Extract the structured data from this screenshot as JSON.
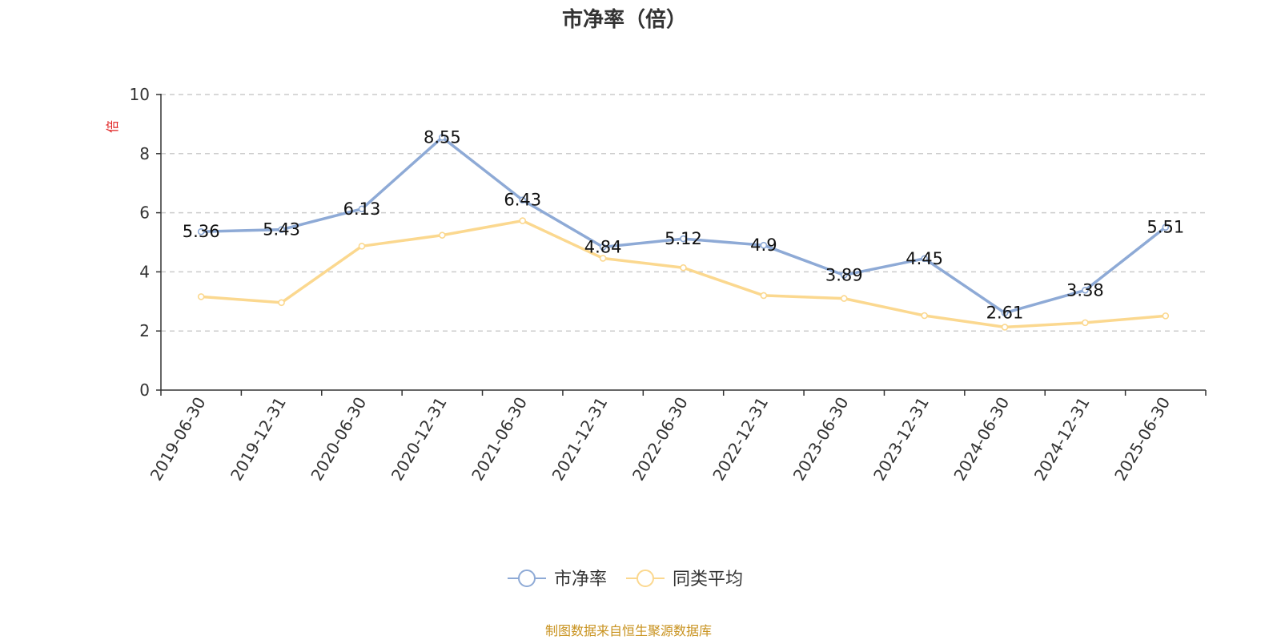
{
  "chart_data": {
    "type": "line",
    "title": "市净率（倍）",
    "ylabel": "倍",
    "xlabel": "",
    "ylim": [
      0,
      10
    ],
    "yticks": [
      0,
      2,
      4,
      6,
      8,
      10
    ],
    "grid": true,
    "legend_position": "bottom-center",
    "categories": [
      "2019-06-30",
      "2019-12-31",
      "2020-06-30",
      "2020-12-31",
      "2021-06-30",
      "2021-12-31",
      "2022-06-30",
      "2022-12-31",
      "2023-06-30",
      "2023-12-31",
      "2024-06-30",
      "2024-12-31",
      "2025-06-30"
    ],
    "series": [
      {
        "name": "市净率",
        "color": "#8eaad6",
        "show_labels": true,
        "values": [
          5.36,
          5.43,
          6.13,
          8.55,
          6.43,
          4.84,
          5.12,
          4.9,
          3.89,
          4.45,
          2.61,
          3.38,
          5.51
        ]
      },
      {
        "name": "同类平均",
        "color": "#fbd88f",
        "show_labels": false,
        "values": [
          3.16,
          2.96,
          4.87,
          5.24,
          5.73,
          4.46,
          4.14,
          3.2,
          3.1,
          2.52,
          2.13,
          2.28,
          2.51
        ]
      }
    ]
  },
  "source_note": "制图数据来自恒生聚源数据库",
  "colors": {
    "title": "#333333",
    "axis": "#333333",
    "grid": "#cccccc",
    "ylabel": "#e02020",
    "source": "#c8921e"
  }
}
